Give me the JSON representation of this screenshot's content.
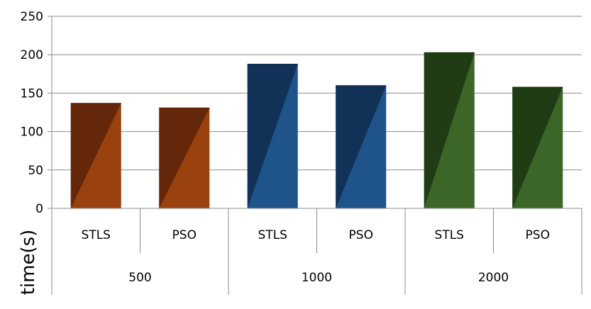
{
  "chart_data": {
    "type": "bar",
    "ylabel": "time(s)",
    "ylim": [
      0,
      250
    ],
    "yticks": [
      0,
      50,
      100,
      150,
      200,
      250
    ],
    "grid": true,
    "categories": [
      "STLS",
      "PSO",
      "STLS",
      "PSO",
      "STLS",
      "PSO"
    ],
    "groups": [
      {
        "label": "500",
        "colors": [
          "#5a2208",
          "#9a420f"
        ]
      },
      {
        "label": "1000",
        "colors": [
          "#0f2c4e",
          "#1e5489"
        ]
      },
      {
        "label": "2000",
        "colors": [
          "#1c3512",
          "#3b6628"
        ]
      }
    ],
    "values": [
      137,
      131,
      188,
      160,
      203,
      158
    ]
  }
}
